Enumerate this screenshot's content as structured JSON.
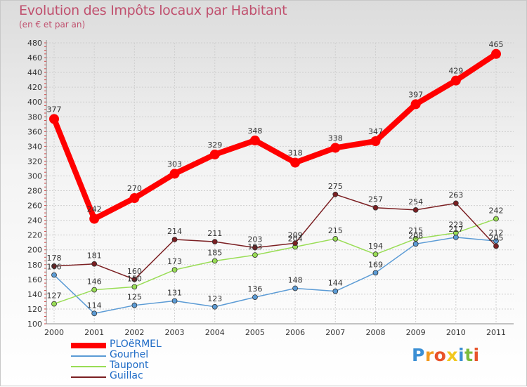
{
  "title": "Evolution des Impôts locaux par Habitant",
  "subtitle": "(en € et par an)",
  "logo": {
    "text": "Proxiti",
    "letters": [
      "P",
      "r",
      "o",
      "x",
      "i",
      "t",
      "i"
    ],
    "colors": [
      "#3b8fd4",
      "#f29a1f",
      "#e8532a",
      "#f2c81f",
      "#3b8fd4",
      "#7cbc3c",
      "#e8532a"
    ]
  },
  "chart_data": {
    "type": "line",
    "title": "Evolution des Impôts locaux par Habitant",
    "subtitle": "(en € et par an)",
    "xlabel": "",
    "ylabel": "",
    "x": [
      "2000",
      "2001",
      "2002",
      "2003",
      "2004",
      "2005",
      "2006",
      "2007",
      "2008",
      "2009",
      "2010",
      "2011"
    ],
    "ylim": [
      100,
      480
    ],
    "yticks": [
      100,
      120,
      140,
      160,
      180,
      200,
      220,
      240,
      260,
      280,
      300,
      320,
      340,
      360,
      380,
      400,
      420,
      440,
      460,
      480
    ],
    "grid": true,
    "legend_position": "bottom-left",
    "series": [
      {
        "name": "PLOëRMEL",
        "color": "#ff0000",
        "width": 8,
        "marker": 7,
        "labels": true,
        "values": [
          377,
          242,
          270,
          303,
          329,
          348,
          318,
          338,
          347,
          397,
          429,
          465
        ]
      },
      {
        "name": "Gourhel",
        "color": "#5b9bd5",
        "width": 1.5,
        "marker": 3.5,
        "labels": true,
        "values": [
          166,
          114,
          125,
          131,
          123,
          136,
          148,
          144,
          169,
          208,
          217,
          212
        ]
      },
      {
        "name": "Taupont",
        "color": "#99dd55",
        "width": 1.5,
        "marker": 3.5,
        "labels": true,
        "values": [
          127,
          146,
          150,
          173,
          185,
          193,
          204,
          215,
          194,
          215,
          223,
          242
        ]
      },
      {
        "name": "Guillac",
        "color": "#7b1f22",
        "width": 1.5,
        "marker": 3.5,
        "labels": true,
        "values": [
          178,
          181,
          160,
          214,
          211,
          203,
          209,
          275,
          257,
          254,
          263,
          205
        ]
      }
    ]
  }
}
